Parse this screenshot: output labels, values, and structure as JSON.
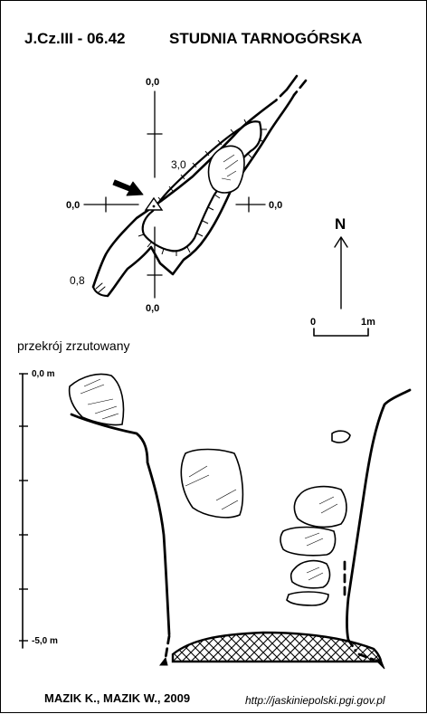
{
  "header": {
    "code": "J.Cz.III - 06.42",
    "name": "STUDNIA TARNOGÓRSKA"
  },
  "plan": {
    "axis_labels": {
      "top": "0,0",
      "left": "0,0",
      "right": "0,0",
      "bottom": "0,0"
    },
    "depth_labels": {
      "upper": "3,0",
      "lower": "0,8"
    }
  },
  "north_arrow": {
    "label": "N",
    "scale_start": "0",
    "scale_end": "1m"
  },
  "section": {
    "title": "przekrój zrzutowany",
    "depth_top": "0,0 m",
    "depth_bottom": "-5,0 m"
  },
  "footer": {
    "authors": "MAZIK K., MAZIK W., 2009",
    "url": "http://jaskiniepolski.pgi.gov.pl"
  }
}
